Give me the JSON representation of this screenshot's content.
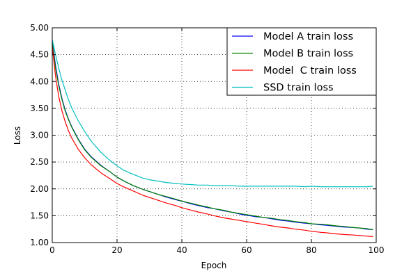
{
  "chart_data": {
    "type": "line",
    "title": "",
    "xlabel": "Epoch",
    "ylabel": "Loss",
    "xlim": [
      0,
      100
    ],
    "ylim": [
      1.0,
      5.0
    ],
    "xticks": [
      0,
      20,
      40,
      60,
      80,
      100
    ],
    "xtick_labels": [
      "0",
      "20",
      "40",
      "60",
      "80",
      "100"
    ],
    "yticks": [
      1.0,
      1.5,
      2.0,
      2.5,
      3.0,
      3.5,
      4.0,
      4.5,
      5.0
    ],
    "ytick_labels": [
      "1.00",
      "1.50",
      "2.00",
      "2.50",
      "3.00",
      "3.50",
      "4.00",
      "4.50",
      "5.00"
    ],
    "grid": true,
    "legend_position": "top-right",
    "x": [
      0,
      1,
      2,
      3,
      4,
      5,
      6,
      8,
      10,
      12,
      15,
      18,
      20,
      22,
      25,
      28,
      30,
      33,
      35,
      38,
      40,
      43,
      45,
      48,
      50,
      53,
      55,
      58,
      60,
      63,
      65,
      68,
      70,
      73,
      75,
      78,
      80,
      83,
      85,
      88,
      90,
      93,
      95,
      97,
      99
    ],
    "series": [
      {
        "name": "Model A train loss",
        "color": "#0000ff",
        "values": [
          4.75,
          4.3,
          3.95,
          3.68,
          3.47,
          3.3,
          3.16,
          2.93,
          2.74,
          2.6,
          2.44,
          2.31,
          2.22,
          2.15,
          2.06,
          1.99,
          1.95,
          1.89,
          1.85,
          1.8,
          1.77,
          1.72,
          1.69,
          1.65,
          1.63,
          1.59,
          1.57,
          1.53,
          1.51,
          1.48,
          1.47,
          1.44,
          1.42,
          1.4,
          1.38,
          1.36,
          1.35,
          1.33,
          1.32,
          1.3,
          1.29,
          1.28,
          1.27,
          1.25,
          1.24
        ]
      },
      {
        "name": "Model B train loss",
        "color": "#008000",
        "values": [
          4.72,
          4.25,
          3.92,
          3.66,
          3.45,
          3.29,
          3.15,
          2.92,
          2.73,
          2.59,
          2.43,
          2.31,
          2.22,
          2.15,
          2.06,
          1.99,
          1.95,
          1.89,
          1.86,
          1.81,
          1.77,
          1.73,
          1.7,
          1.66,
          1.63,
          1.6,
          1.57,
          1.54,
          1.52,
          1.49,
          1.47,
          1.45,
          1.43,
          1.41,
          1.39,
          1.37,
          1.35,
          1.34,
          1.33,
          1.31,
          1.3,
          1.28,
          1.27,
          1.26,
          1.24
        ]
      },
      {
        "name": "Model  C train loss",
        "color": "#ff0000",
        "values": [
          4.65,
          4.1,
          3.72,
          3.45,
          3.25,
          3.08,
          2.95,
          2.74,
          2.58,
          2.45,
          2.3,
          2.18,
          2.1,
          2.04,
          1.96,
          1.88,
          1.84,
          1.78,
          1.74,
          1.69,
          1.65,
          1.6,
          1.57,
          1.53,
          1.5,
          1.46,
          1.44,
          1.41,
          1.39,
          1.36,
          1.34,
          1.31,
          1.29,
          1.27,
          1.25,
          1.23,
          1.21,
          1.19,
          1.18,
          1.16,
          1.15,
          1.14,
          1.13,
          1.12,
          1.11
        ]
      },
      {
        "name": "SSD train loss",
        "color": "#00bfbf",
        "values": [
          4.78,
          4.5,
          4.25,
          4.02,
          3.84,
          3.66,
          3.51,
          3.27,
          3.07,
          2.89,
          2.68,
          2.52,
          2.43,
          2.35,
          2.27,
          2.2,
          2.17,
          2.14,
          2.12,
          2.1,
          2.09,
          2.08,
          2.07,
          2.07,
          2.06,
          2.06,
          2.06,
          2.05,
          2.05,
          2.05,
          2.05,
          2.05,
          2.05,
          2.05,
          2.05,
          2.04,
          2.05,
          2.04,
          2.04,
          2.04,
          2.04,
          2.04,
          2.04,
          2.04,
          2.05
        ]
      }
    ]
  }
}
